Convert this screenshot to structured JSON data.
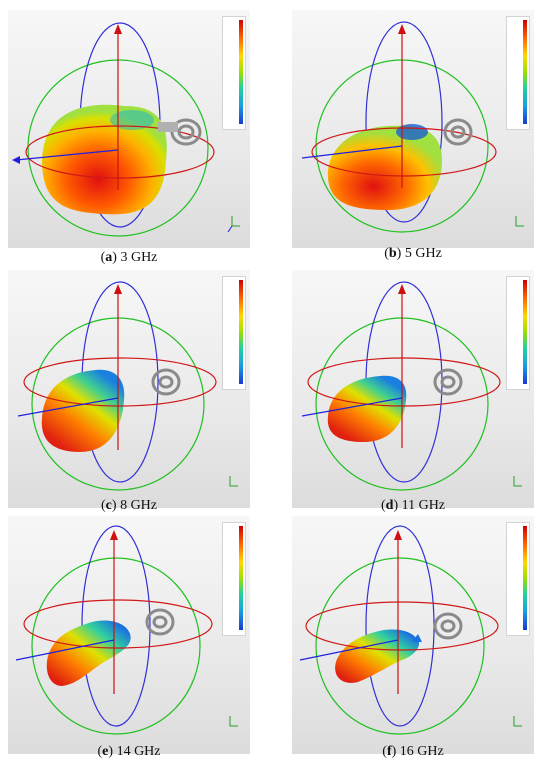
{
  "panels": [
    {
      "letter": "a",
      "freq": "3 GHz"
    },
    {
      "letter": "b",
      "freq": "5 GHz"
    },
    {
      "letter": "c",
      "freq": "8 GHz"
    },
    {
      "letter": "d",
      "freq": "11 GHz"
    },
    {
      "letter": "e",
      "freq": "14 GHz"
    },
    {
      "letter": "f",
      "freq": "16 GHz"
    }
  ],
  "colors": {
    "z_axis": "#d01010",
    "x_axis": "#2020e0",
    "circle_green": "#20c020",
    "circle_blue": "#3030d8",
    "circle_red": "#d01818",
    "antenna": "#8a8a8a"
  }
}
